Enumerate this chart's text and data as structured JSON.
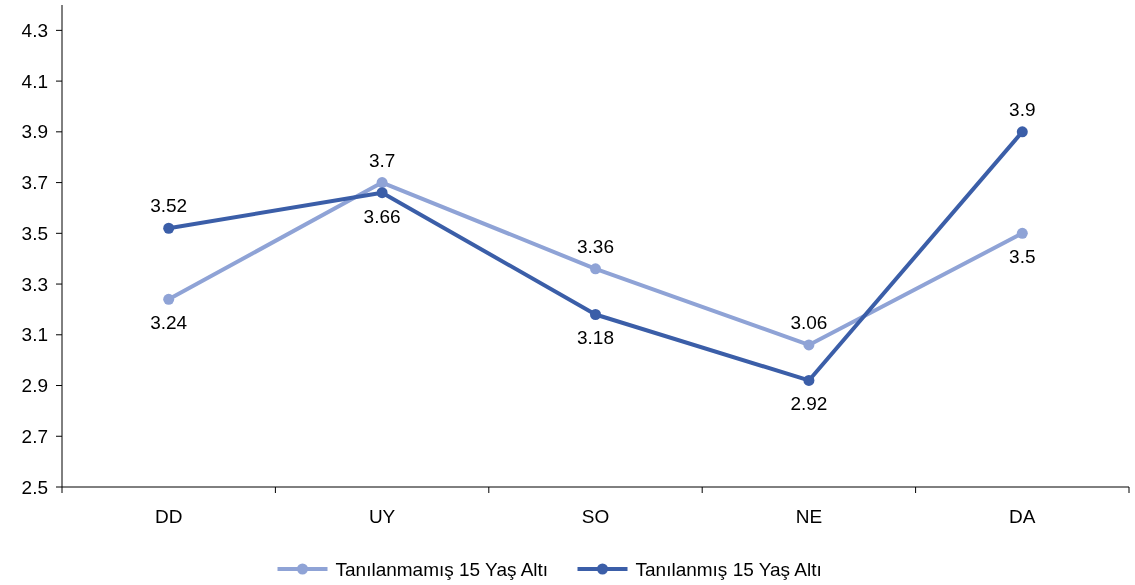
{
  "chart_data": {
    "type": "line",
    "categories": [
      "DD",
      "UY",
      "SO",
      "NE",
      "DA"
    ],
    "series": [
      {
        "name": "Tanılanmamış 15 Yaş Altı",
        "color": "#8fa3d6",
        "values": [
          3.24,
          3.7,
          3.36,
          3.06,
          3.5
        ]
      },
      {
        "name": "Tanılanmış 15 Yaş Altı",
        "color": "#3b5ea8",
        "values": [
          3.52,
          3.66,
          3.18,
          2.92,
          3.9
        ]
      }
    ],
    "ylim": [
      2.5,
      4.4
    ],
    "yticks": [
      2.5,
      2.7,
      2.9,
      3.1,
      3.3,
      3.5,
      3.7,
      3.9,
      4.1,
      4.3
    ],
    "data_labels": true,
    "legend": "bottom",
    "marker": "circle",
    "line_style": "solid",
    "grid": false
  }
}
